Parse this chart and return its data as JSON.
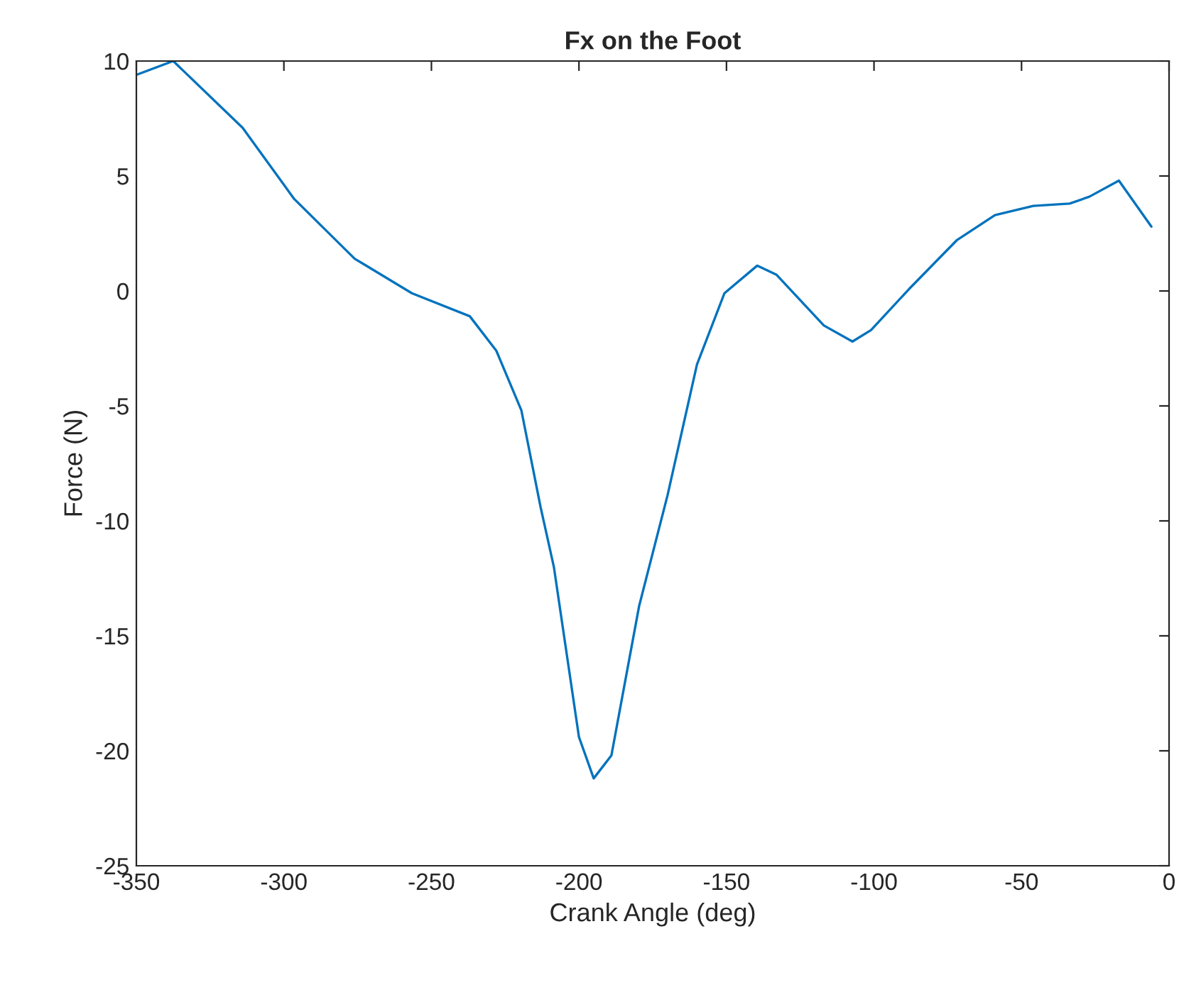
{
  "chart_data": {
    "type": "line",
    "title": "Fx on the Foot",
    "xlabel": "Crank Angle (deg)",
    "ylabel": "Force (N)",
    "x": [
      -350,
      -337.5,
      -314,
      -296.5,
      -276,
      -256.6,
      -237,
      -228,
      -219.5,
      -213,
      -208.5,
      -200,
      -195,
      -189,
      -179.6,
      -170,
      -160,
      -150.7,
      -139.6,
      -133,
      -117,
      -107.3,
      -101,
      -88,
      -72,
      -59,
      -46,
      -33.7,
      -27,
      -17,
      -6
    ],
    "series": [
      {
        "color": "#0072bd",
        "values": [
          9.4,
          10,
          7.1,
          4.0,
          1.4,
          -0.1,
          -1.1,
          -2.6,
          -5.2,
          -9.4,
          -12.0,
          -19.4,
          -21.2,
          -20.2,
          -13.7,
          -8.9,
          -3.2,
          -0.1,
          1.1,
          0.7,
          -1.5,
          -2.2,
          -1.7,
          0.1,
          2.2,
          3.3,
          3.7,
          3.8,
          4.1,
          4.8,
          2.8
        ]
      }
    ],
    "xlim": [
      -350,
      0
    ],
    "xticks": [
      -350,
      -300,
      -250,
      -200,
      -150,
      -100,
      -50,
      0
    ],
    "ylim": [
      -25,
      10
    ],
    "yticks": [
      -25,
      -20,
      -15,
      -10,
      -5,
      0,
      5,
      10
    ],
    "grid": false
  }
}
